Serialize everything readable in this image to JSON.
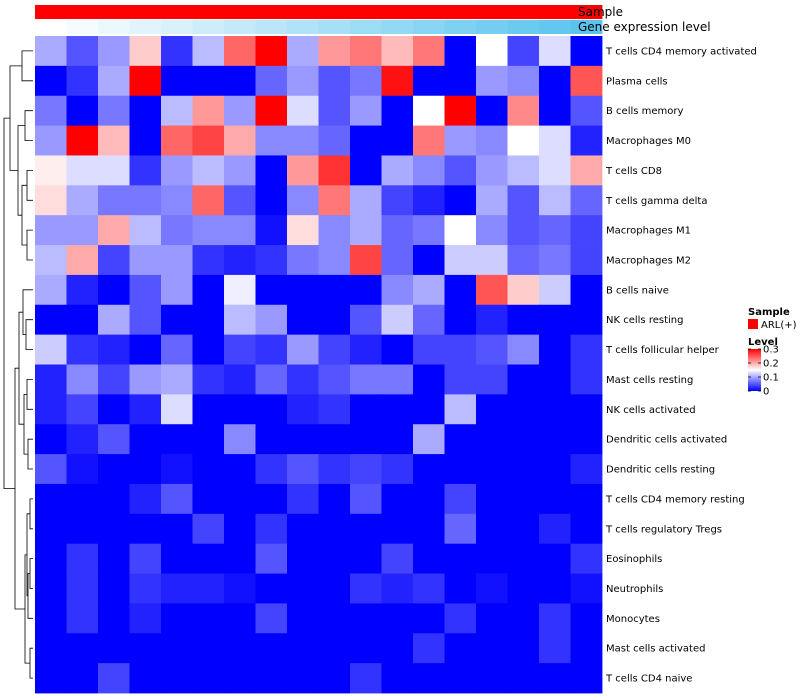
{
  "chart_data": {
    "type": "heatmap",
    "title": "",
    "annotation_labels": [
      "Sample",
      "Gene expression level"
    ],
    "rows": [
      "T cells CD4 memory activated",
      "Plasma cells",
      "B cells memory",
      "Macrophages M0",
      "T cells CD8",
      "T cells gamma delta",
      "Macrophages M1",
      "Macrophages M2",
      "B cells naive",
      "NK cells resting",
      "T cells follicular helper",
      "Mast cells resting",
      "NK cells activated",
      "Dendritic cells activated",
      "Dendritic cells resting",
      "T cells CD4 memory resting",
      "T cells regulatory  Tregs",
      "Eosinophils",
      "Neutrophils",
      "Monocytes",
      "Mast cells activated",
      "T cells CD4 naive"
    ],
    "n_columns": 18,
    "values": [
      [
        0.1,
        0.05,
        0.09,
        0.18,
        0.03,
        0.11,
        0.24,
        0.3,
        0.1,
        0.21,
        0.23,
        0.19,
        0.23,
        0.0,
        0.15,
        0.04,
        0.13,
        0.0
      ],
      [
        0.0,
        0.03,
        0.1,
        0.3,
        0.0,
        0.0,
        0.0,
        0.06,
        0.09,
        0.05,
        0.07,
        0.29,
        0.0,
        0.0,
        0.09,
        0.08,
        0.0,
        0.25
      ],
      [
        0.07,
        0.0,
        0.07,
        0.0,
        0.11,
        0.21,
        0.09,
        0.3,
        0.13,
        0.05,
        0.09,
        0.0,
        0.15,
        0.3,
        0.0,
        0.22,
        0.0,
        0.05
      ],
      [
        0.09,
        0.3,
        0.19,
        0.0,
        0.24,
        0.26,
        0.2,
        0.08,
        0.08,
        0.06,
        0.0,
        0.0,
        0.23,
        0.09,
        0.08,
        0.15,
        0.13,
        0.02
      ],
      [
        0.16,
        0.13,
        0.13,
        0.03,
        0.09,
        0.11,
        0.09,
        0.0,
        0.21,
        0.27,
        0.0,
        0.1,
        0.08,
        0.05,
        0.09,
        0.11,
        0.13,
        0.2
      ],
      [
        0.17,
        0.1,
        0.07,
        0.07,
        0.08,
        0.24,
        0.05,
        0.0,
        0.08,
        0.23,
        0.1,
        0.04,
        0.02,
        0.0,
        0.1,
        0.05,
        0.11,
        0.06
      ],
      [
        0.09,
        0.09,
        0.2,
        0.11,
        0.07,
        0.08,
        0.08,
        0.01,
        0.17,
        0.08,
        0.1,
        0.06,
        0.07,
        0.15,
        0.08,
        0.05,
        0.06,
        0.04
      ],
      [
        0.11,
        0.2,
        0.04,
        0.09,
        0.09,
        0.03,
        0.02,
        0.03,
        0.07,
        0.08,
        0.26,
        0.06,
        0.0,
        0.12,
        0.12,
        0.06,
        0.07,
        0.04
      ],
      [
        0.1,
        0.02,
        0.0,
        0.05,
        0.09,
        0.0,
        0.14,
        0.0,
        0.0,
        0.0,
        0.0,
        0.08,
        0.1,
        0.0,
        0.25,
        0.18,
        0.12,
        0.0
      ],
      [
        0.0,
        0.0,
        0.1,
        0.05,
        0.0,
        0.0,
        0.11,
        0.09,
        0.0,
        0.0,
        0.05,
        0.12,
        0.06,
        0.0,
        0.02,
        0.0,
        0.0,
        0.0
      ],
      [
        0.12,
        0.03,
        0.02,
        0.0,
        0.06,
        0.0,
        0.04,
        0.03,
        0.09,
        0.04,
        0.02,
        0.0,
        0.04,
        0.04,
        0.05,
        0.08,
        0.0,
        0.03
      ],
      [
        0.02,
        0.08,
        0.04,
        0.09,
        0.1,
        0.03,
        0.02,
        0.06,
        0.03,
        0.05,
        0.07,
        0.07,
        0.0,
        0.04,
        0.04,
        0.0,
        0.0,
        0.03
      ],
      [
        0.02,
        0.04,
        0.0,
        0.02,
        0.13,
        0.0,
        0.0,
        0.0,
        0.02,
        0.03,
        0.0,
        0.0,
        0.0,
        0.11,
        0.0,
        0.0,
        0.0,
        0.0
      ],
      [
        0.0,
        0.02,
        0.05,
        0.0,
        0.0,
        0.0,
        0.08,
        0.0,
        0.0,
        0.0,
        0.0,
        0.0,
        0.1,
        0.0,
        0.0,
        0.0,
        0.0,
        0.0
      ],
      [
        0.05,
        0.01,
        0.0,
        0.0,
        0.01,
        0.0,
        0.0,
        0.03,
        0.05,
        0.03,
        0.04,
        0.03,
        0.0,
        0.0,
        0.0,
        0.0,
        0.0,
        0.02
      ],
      [
        0.0,
        0.0,
        0.0,
        0.02,
        0.05,
        0.0,
        0.0,
        0.0,
        0.03,
        0.0,
        0.05,
        0.0,
        0.0,
        0.04,
        0.0,
        0.0,
        0.0,
        0.0
      ],
      [
        0.0,
        0.0,
        0.0,
        0.0,
        0.0,
        0.04,
        0.0,
        0.03,
        0.0,
        0.0,
        0.0,
        0.0,
        0.0,
        0.06,
        0.0,
        0.0,
        0.02,
        0.0
      ],
      [
        0.0,
        0.03,
        0.0,
        0.04,
        0.0,
        0.0,
        0.0,
        0.05,
        0.0,
        0.0,
        0.0,
        0.04,
        0.0,
        0.0,
        0.0,
        0.0,
        0.0,
        0.03
      ],
      [
        0.0,
        0.03,
        0.0,
        0.03,
        0.02,
        0.02,
        0.01,
        0.0,
        0.0,
        0.0,
        0.03,
        0.02,
        0.03,
        0.0,
        0.01,
        0.0,
        0.0,
        0.01
      ],
      [
        0.0,
        0.03,
        0.0,
        0.02,
        0.0,
        0.0,
        0.0,
        0.04,
        0.0,
        0.0,
        0.0,
        0.0,
        0.0,
        0.03,
        0.0,
        0.0,
        0.03,
        0.0
      ],
      [
        0.0,
        0.0,
        0.0,
        0.0,
        0.0,
        0.0,
        0.0,
        0.0,
        0.0,
        0.0,
        0.0,
        0.0,
        0.03,
        0.0,
        0.0,
        0.0,
        0.03,
        0.0
      ],
      [
        0.0,
        0.0,
        0.04,
        0.0,
        0.0,
        0.0,
        0.0,
        0.0,
        0.0,
        0.0,
        0.03,
        0.0,
        0.0,
        0.0,
        0.0,
        0.0,
        0.0,
        0.0
      ]
    ],
    "value_range": [
      0,
      0.3
    ],
    "color_scale": [
      "#0000ff",
      "#ffffff",
      "#ff0000"
    ],
    "gene_expression_level": [
      0.0,
      0.06,
      0.12,
      0.18,
      0.24,
      0.3,
      0.36,
      0.42,
      0.48,
      0.54,
      0.6,
      0.66,
      0.72,
      0.78,
      0.84,
      0.9,
      0.95,
      1.0
    ],
    "gene_expression_colors": [
      "#ffffff",
      "#5bc4ee"
    ],
    "sample_group_color": "#ff0000",
    "legends": {
      "sample": {
        "title": "Sample",
        "items": [
          {
            "label": "ARL(+)",
            "color": "#ff0000"
          }
        ]
      },
      "level": {
        "title": "Level",
        "ticks": [
          "0.3",
          "0.2",
          "0.1",
          "0"
        ],
        "tick_values": [
          0.3,
          0.2,
          0.1,
          0
        ]
      }
    },
    "row_dendrogram": true
  }
}
